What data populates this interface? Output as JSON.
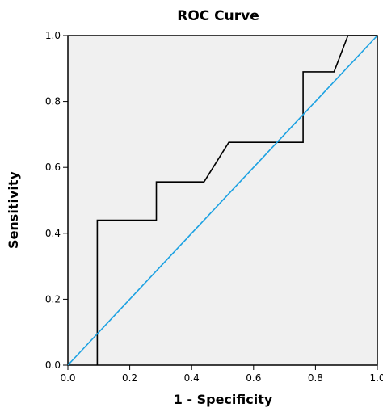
{
  "chart_data": {
    "type": "line",
    "title": "ROC Curve",
    "xlabel": "1 - Specificity",
    "ylabel": "Sensitivity",
    "xlim": [
      0.0,
      1.0
    ],
    "ylim": [
      0.0,
      1.0
    ],
    "x_ticks": [
      "0.0",
      "0.2",
      "0.4",
      "0.6",
      "0.8",
      "1.0"
    ],
    "y_ticks": [
      "0.0",
      "0.2",
      "0.4",
      "0.6",
      "0.8",
      "1.0"
    ],
    "grid": false,
    "legend": "none",
    "background_color": "#f0f0f0",
    "series": [
      {
        "style": "step",
        "color": "#000000",
        "x": [
          0.095,
          0.095,
          0.286,
          0.286,
          0.44,
          0.52,
          0.76,
          0.76,
          0.86,
          0.905,
          1.0
        ],
        "y": [
          0.0,
          0.44,
          0.44,
          0.556,
          0.556,
          0.676,
          0.676,
          0.89,
          0.89,
          1.0,
          1.0
        ]
      },
      {
        "style": "reference",
        "color": "#1ba1e2",
        "x": [
          0.0,
          1.0
        ],
        "y": [
          0.0,
          1.0
        ]
      }
    ]
  }
}
